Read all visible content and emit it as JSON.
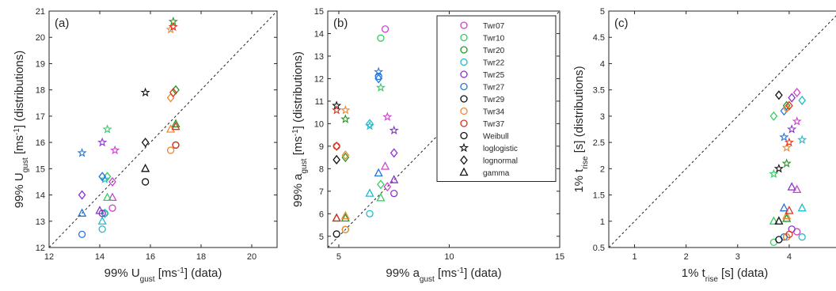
{
  "chart_data": [
    {
      "type": "scatter",
      "panel_label": "(a)",
      "xlabel": {
        "main": "99% U",
        "sub": "gust",
        "unit_pre": " [ms",
        "sup": "-1",
        "unit_post": "] (data)"
      },
      "ylabel": {
        "main": "99% U",
        "sub": "gust",
        "unit_pre": " [ms",
        "sup": "-1",
        "unit_post": "] (distributions)"
      },
      "xlim": [
        12,
        21
      ],
      "ylim": [
        12,
        21
      ],
      "xticks": [
        "12",
        "14",
        "16",
        "18",
        "20"
      ],
      "yticks": [
        "12",
        "13",
        "14",
        "15",
        "16",
        "17",
        "18",
        "19",
        "20",
        "21"
      ],
      "grid": false,
      "reference_line": "y = x (dashed)",
      "series": [
        {
          "tower": "Twr07",
          "color": "#cc44cc",
          "points": [
            {
              "m": "weibull",
              "x": 14.5,
              "y": 13.5
            },
            {
              "m": "loglogistic",
              "x": 14.6,
              "y": 15.7
            },
            {
              "m": "lognormal",
              "x": 14.5,
              "y": 14.5
            },
            {
              "m": "gamma",
              "x": 14.5,
              "y": 13.9
            }
          ]
        },
        {
          "tower": "Twr10",
          "color": "#33cc66",
          "points": [
            {
              "m": "weibull",
              "x": 14.2,
              "y": 13.3
            },
            {
              "m": "loglogistic",
              "x": 14.3,
              "y": 16.5
            },
            {
              "m": "lognormal",
              "x": 14.3,
              "y": 14.7
            },
            {
              "m": "gamma",
              "x": 14.3,
              "y": 13.9
            }
          ]
        },
        {
          "tower": "Twr20",
          "color": "#229922",
          "points": [
            {
              "m": "weibull",
              "x": 17.0,
              "y": 15.9
            },
            {
              "m": "loglogistic",
              "x": 16.9,
              "y": 20.6
            },
            {
              "m": "lognormal",
              "x": 17.0,
              "y": 18.0
            },
            {
              "m": "gamma",
              "x": 17.0,
              "y": 16.7
            }
          ]
        },
        {
          "tower": "Twr22",
          "color": "#22bbcc",
          "points": [
            {
              "m": "weibull",
              "x": 14.1,
              "y": 12.7
            },
            {
              "m": "loglogistic",
              "x": 14.2,
              "y": 14.6
            },
            {
              "m": "lognormal",
              "x": 14.2,
              "y": 13.3
            },
            {
              "m": "gamma",
              "x": 14.1,
              "y": 13.0
            }
          ]
        },
        {
          "tower": "Twr25",
          "color": "#8833cc",
          "points": [
            {
              "m": "weibull",
              "x": 14.1,
              "y": 13.3
            },
            {
              "m": "loglogistic",
              "x": 14.1,
              "y": 16.0
            },
            {
              "m": "lognormal",
              "x": 13.3,
              "y": 14.0
            },
            {
              "m": "gamma",
              "x": 14.0,
              "y": 13.4
            }
          ]
        },
        {
          "tower": "Twr27",
          "color": "#2277dd",
          "points": [
            {
              "m": "weibull",
              "x": 13.3,
              "y": 12.5
            },
            {
              "m": "loglogistic",
              "x": 13.3,
              "y": 15.6
            },
            {
              "m": "lognormal",
              "x": 14.1,
              "y": 14.7
            },
            {
              "m": "gamma",
              "x": 13.3,
              "y": 13.3
            }
          ]
        },
        {
          "tower": "Twr29",
          "color": "#111111",
          "points": [
            {
              "m": "weibull",
              "x": 15.8,
              "y": 14.5
            },
            {
              "m": "loglogistic",
              "x": 15.8,
              "y": 17.9
            },
            {
              "m": "lognormal",
              "x": 15.8,
              "y": 16.0
            },
            {
              "m": "gamma",
              "x": 15.8,
              "y": 15.0
            }
          ]
        },
        {
          "tower": "Twr34",
          "color": "#ee8833",
          "points": [
            {
              "m": "weibull",
              "x": 16.8,
              "y": 15.7
            },
            {
              "m": "loglogistic",
              "x": 16.8,
              "y": 20.3
            },
            {
              "m": "lognormal",
              "x": 16.8,
              "y": 17.7
            },
            {
              "m": "gamma",
              "x": 16.8,
              "y": 16.5
            }
          ]
        },
        {
          "tower": "Twr37",
          "color": "#dd3322",
          "points": [
            {
              "m": "weibull",
              "x": 17.0,
              "y": 15.9
            },
            {
              "m": "loglogistic",
              "x": 16.9,
              "y": 20.4
            },
            {
              "m": "lognormal",
              "x": 16.9,
              "y": 17.9
            },
            {
              "m": "gamma",
              "x": 17.0,
              "y": 16.6
            }
          ]
        }
      ]
    },
    {
      "type": "scatter",
      "panel_label": "(b)",
      "xlabel": {
        "main": "99% a",
        "sub": "gust",
        "unit_pre": " [ms",
        "sup": "-1",
        "unit_post": "] (data)"
      },
      "ylabel": {
        "main": "99% a",
        "sub": "gust",
        "unit_pre": " [ms",
        "sup": "-1",
        "unit_post": "] (distributions)"
      },
      "xlim": [
        4.5,
        15
      ],
      "ylim": [
        4.5,
        15
      ],
      "xticks": [
        "5",
        "10",
        "15"
      ],
      "yticks": [
        "5",
        "6",
        "7",
        "8",
        "9",
        "10",
        "11",
        "12",
        "13",
        "14",
        "15"
      ],
      "grid": false,
      "reference_line": "y = x (dashed)",
      "legend_position": "top-right",
      "series": [
        {
          "tower": "Twr07",
          "color": "#cc44cc",
          "points": [
            {
              "m": "weibull",
              "x": 7.1,
              "y": 14.2
            },
            {
              "m": "loglogistic",
              "x": 7.2,
              "y": 10.3
            },
            {
              "m": "lognormal",
              "x": 7.2,
              "y": 7.2
            },
            {
              "m": "gamma",
              "x": 7.1,
              "y": 8.1
            }
          ]
        },
        {
          "tower": "Twr10",
          "color": "#33cc66",
          "points": [
            {
              "m": "weibull",
              "x": 6.9,
              "y": 13.8
            },
            {
              "m": "loglogistic",
              "x": 6.9,
              "y": 11.6
            },
            {
              "m": "lognormal",
              "x": 6.9,
              "y": 7.3
            },
            {
              "m": "gamma",
              "x": 6.9,
              "y": 6.7
            }
          ]
        },
        {
          "tower": "Twr20",
          "color": "#229922",
          "points": [
            {
              "m": "weibull",
              "x": 5.3,
              "y": 5.3
            },
            {
              "m": "loglogistic",
              "x": 5.3,
              "y": 10.2
            },
            {
              "m": "lognormal",
              "x": 5.3,
              "y": 8.5
            },
            {
              "m": "gamma",
              "x": 5.3,
              "y": 5.8
            }
          ]
        },
        {
          "tower": "Twr22",
          "color": "#22bbcc",
          "points": [
            {
              "m": "weibull",
              "x": 6.4,
              "y": 6.0
            },
            {
              "m": "loglogistic",
              "x": 6.4,
              "y": 9.9
            },
            {
              "m": "lognormal",
              "x": 6.4,
              "y": 10.0
            },
            {
              "m": "gamma",
              "x": 6.4,
              "y": 6.9
            }
          ]
        },
        {
          "tower": "Twr25",
          "color": "#8833cc",
          "points": [
            {
              "m": "weibull",
              "x": 7.5,
              "y": 6.9
            },
            {
              "m": "loglogistic",
              "x": 7.5,
              "y": 9.7
            },
            {
              "m": "lognormal",
              "x": 7.5,
              "y": 8.7
            },
            {
              "m": "gamma",
              "x": 7.5,
              "y": 7.5
            }
          ]
        },
        {
          "tower": "Twr27",
          "color": "#2277dd",
          "points": [
            {
              "m": "weibull",
              "x": 6.8,
              "y": 12.1
            },
            {
              "m": "loglogistic",
              "x": 6.8,
              "y": 12.3
            },
            {
              "m": "lognormal",
              "x": 6.8,
              "y": 12.0
            },
            {
              "m": "gamma",
              "x": 6.8,
              "y": 7.8
            }
          ]
        },
        {
          "tower": "Twr29",
          "color": "#111111",
          "points": [
            {
              "m": "weibull",
              "x": 4.9,
              "y": 5.1
            },
            {
              "m": "loglogistic",
              "x": 4.9,
              "y": 10.8
            },
            {
              "m": "lognormal",
              "x": 4.9,
              "y": 8.4
            },
            {
              "m": "gamma",
              "x": 4.9,
              "y": 5.8
            }
          ]
        },
        {
          "tower": "Twr34",
          "color": "#ee8833",
          "points": [
            {
              "m": "weibull",
              "x": 5.3,
              "y": 5.3
            },
            {
              "m": "loglogistic",
              "x": 5.3,
              "y": 10.6
            },
            {
              "m": "lognormal",
              "x": 5.3,
              "y": 8.6
            },
            {
              "m": "gamma",
              "x": 5.3,
              "y": 5.9
            }
          ]
        },
        {
          "tower": "Twr37",
          "color": "#dd3322",
          "points": [
            {
              "m": "weibull",
              "x": 4.9,
              "y": 9.0
            },
            {
              "m": "loglogistic",
              "x": 4.9,
              "y": 10.6
            },
            {
              "m": "lognormal",
              "x": 4.9,
              "y": 9.0
            },
            {
              "m": "gamma",
              "x": 4.9,
              "y": 5.8
            }
          ]
        }
      ]
    },
    {
      "type": "scatter",
      "panel_label": "(c)",
      "xlabel": {
        "main": "1% t",
        "sub": "rise",
        "unit_pre": " [s] (data)",
        "sup": "",
        "unit_post": ""
      },
      "ylabel": {
        "main": "1% t",
        "sub": "rise",
        "unit_pre": " [s] (distributions)",
        "sup": "",
        "unit_post": ""
      },
      "xlim": [
        0.5,
        5
      ],
      "ylim": [
        0.5,
        5
      ],
      "xticks": [
        "1",
        "2",
        "3",
        "4"
      ],
      "yticks": [
        "0.5",
        "1",
        "1.5",
        "2",
        "2.5",
        "3",
        "3.5",
        "4",
        "4.5",
        "5"
      ],
      "grid": false,
      "reference_line": "y = x (dashed)",
      "series": [
        {
          "tower": "Twr07",
          "color": "#cc44cc",
          "points": [
            {
              "m": "weibull",
              "x": 4.15,
              "y": 0.8
            },
            {
              "m": "loglogistic",
              "x": 4.15,
              "y": 2.9
            },
            {
              "m": "lognormal",
              "x": 4.15,
              "y": 3.45
            },
            {
              "m": "gamma",
              "x": 4.15,
              "y": 1.6
            }
          ]
        },
        {
          "tower": "Twr10",
          "color": "#33cc66",
          "points": [
            {
              "m": "weibull",
              "x": 3.7,
              "y": 0.6
            },
            {
              "m": "loglogistic",
              "x": 3.7,
              "y": 1.9
            },
            {
              "m": "lognormal",
              "x": 3.7,
              "y": 3.0
            },
            {
              "m": "gamma",
              "x": 3.7,
              "y": 1.0
            }
          ]
        },
        {
          "tower": "Twr20",
          "color": "#229922",
          "points": [
            {
              "m": "weibull",
              "x": 3.95,
              "y": 0.7
            },
            {
              "m": "loglogistic",
              "x": 3.95,
              "y": 2.1
            },
            {
              "m": "lognormal",
              "x": 3.95,
              "y": 3.2
            },
            {
              "m": "gamma",
              "x": 3.95,
              "y": 1.05
            }
          ]
        },
        {
          "tower": "Twr22",
          "color": "#22bbcc",
          "points": [
            {
              "m": "weibull",
              "x": 4.25,
              "y": 0.7
            },
            {
              "m": "loglogistic",
              "x": 4.25,
              "y": 2.55
            },
            {
              "m": "lognormal",
              "x": 4.25,
              "y": 3.3
            },
            {
              "m": "gamma",
              "x": 4.25,
              "y": 1.25
            }
          ]
        },
        {
          "tower": "Twr25",
          "color": "#8833cc",
          "points": [
            {
              "m": "weibull",
              "x": 4.05,
              "y": 0.85
            },
            {
              "m": "loglogistic",
              "x": 4.05,
              "y": 2.75
            },
            {
              "m": "lognormal",
              "x": 4.05,
              "y": 3.35
            },
            {
              "m": "gamma",
              "x": 4.05,
              "y": 1.65
            }
          ]
        },
        {
          "tower": "Twr27",
          "color": "#2277dd",
          "points": [
            {
              "m": "weibull",
              "x": 3.9,
              "y": 0.7
            },
            {
              "m": "loglogistic",
              "x": 3.9,
              "y": 2.6
            },
            {
              "m": "lognormal",
              "x": 3.9,
              "y": 3.1
            },
            {
              "m": "gamma",
              "x": 3.9,
              "y": 1.25
            }
          ]
        },
        {
          "tower": "Twr29",
          "color": "#111111",
          "points": [
            {
              "m": "weibull",
              "x": 3.8,
              "y": 0.65
            },
            {
              "m": "loglogistic",
              "x": 3.8,
              "y": 2.0
            },
            {
              "m": "lognormal",
              "x": 3.8,
              "y": 3.4
            },
            {
              "m": "gamma",
              "x": 3.8,
              "y": 1.0
            }
          ]
        },
        {
          "tower": "Twr34",
          "color": "#ee8833",
          "points": [
            {
              "m": "weibull",
              "x": 3.95,
              "y": 0.7
            },
            {
              "m": "loglogistic",
              "x": 3.95,
              "y": 2.4
            },
            {
              "m": "lognormal",
              "x": 3.95,
              "y": 3.15
            },
            {
              "m": "gamma",
              "x": 3.95,
              "y": 1.1
            }
          ]
        },
        {
          "tower": "Twr37",
          "color": "#dd3322",
          "points": [
            {
              "m": "weibull",
              "x": 4.0,
              "y": 0.75
            },
            {
              "m": "loglogistic",
              "x": 4.0,
              "y": 2.5
            },
            {
              "m": "lognormal",
              "x": 4.0,
              "y": 3.2
            },
            {
              "m": "gamma",
              "x": 4.0,
              "y": 1.2
            }
          ]
        }
      ]
    }
  ],
  "legend": {
    "towers": [
      {
        "label": "Twr07",
        "color": "#cc44cc"
      },
      {
        "label": "Twr10",
        "color": "#33cc66"
      },
      {
        "label": "Twr20",
        "color": "#229922"
      },
      {
        "label": "Twr22",
        "color": "#22bbcc"
      },
      {
        "label": "Twr25",
        "color": "#8833cc"
      },
      {
        "label": "Twr27",
        "color": "#2277dd"
      },
      {
        "label": "Twr29",
        "color": "#111111"
      },
      {
        "label": "Twr34",
        "color": "#ee8833"
      },
      {
        "label": "Twr37",
        "color": "#dd3322"
      }
    ],
    "markers": [
      {
        "label": "Weibull",
        "marker": "weibull"
      },
      {
        "label": "loglogistic",
        "marker": "loglogistic"
      },
      {
        "label": "lognormal",
        "marker": "lognormal"
      },
      {
        "label": "gamma",
        "marker": "gamma"
      }
    ]
  }
}
